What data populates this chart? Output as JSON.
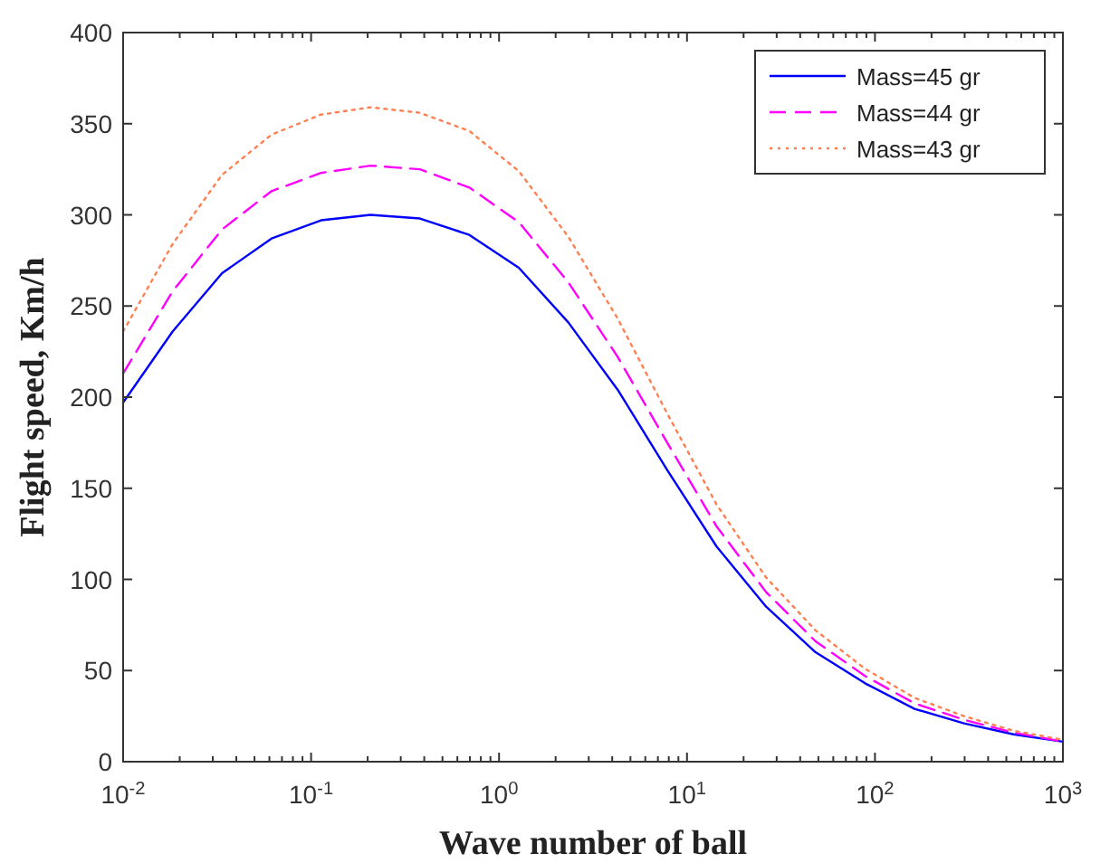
{
  "chart_data": {
    "type": "line",
    "xlabel": "Wave number of ball",
    "ylabel": "Flight speed, Km/h",
    "log": "x",
    "x": [
      0.01,
      0.01833,
      0.0336,
      0.06158,
      0.1129,
      0.2069,
      0.3793,
      0.6952,
      1.274,
      2.336,
      4.281,
      7.848,
      14.38,
      26.37,
      48.33,
      88.59,
      162.4,
      297.6,
      545.6,
      1000
    ],
    "series": [
      {
        "name": "Mass=45 gr",
        "color": "#0000ff",
        "line_style": "solid",
        "values": [
          197,
          236,
          268,
          287,
          297,
          300,
          298,
          289,
          271,
          241,
          204,
          160,
          118,
          85,
          60,
          43,
          29,
          21,
          15,
          11
        ]
      },
      {
        "name": "Mass=44 gr",
        "color": "#ff00ff",
        "line_style": "dashed",
        "values": [
          213,
          258,
          292,
          313,
          323,
          327,
          325,
          315,
          296,
          263,
          222,
          175,
          129,
          93,
          66,
          47,
          32,
          23,
          16,
          11
        ]
      },
      {
        "name": "Mass=43 gr",
        "color": "#ff7f50",
        "line_style": "dotted",
        "values": [
          236,
          284,
          322,
          344,
          355,
          359,
          356,
          346,
          324,
          288,
          243,
          191,
          141,
          101,
          72,
          51,
          35,
          25,
          17,
          12
        ]
      }
    ],
    "xlim": [
      0.01,
      1000
    ],
    "xticks": [
      {
        "value": 0.01,
        "label": "10$^{-2}$"
      },
      {
        "value": 0.1,
        "label": "10$^{-1}$"
      },
      {
        "value": 1,
        "label": "10$^{0}$"
      },
      {
        "value": 10,
        "label": "10$^{1}$"
      },
      {
        "value": 100,
        "label": "10$^{2}$"
      },
      {
        "value": 1000,
        "label": "10$^{3}$"
      }
    ],
    "ylim": [
      0,
      400
    ],
    "yticks": [
      0,
      50,
      100,
      150,
      200,
      250,
      300,
      350,
      400
    ],
    "grid": false,
    "legend": "top right"
  }
}
